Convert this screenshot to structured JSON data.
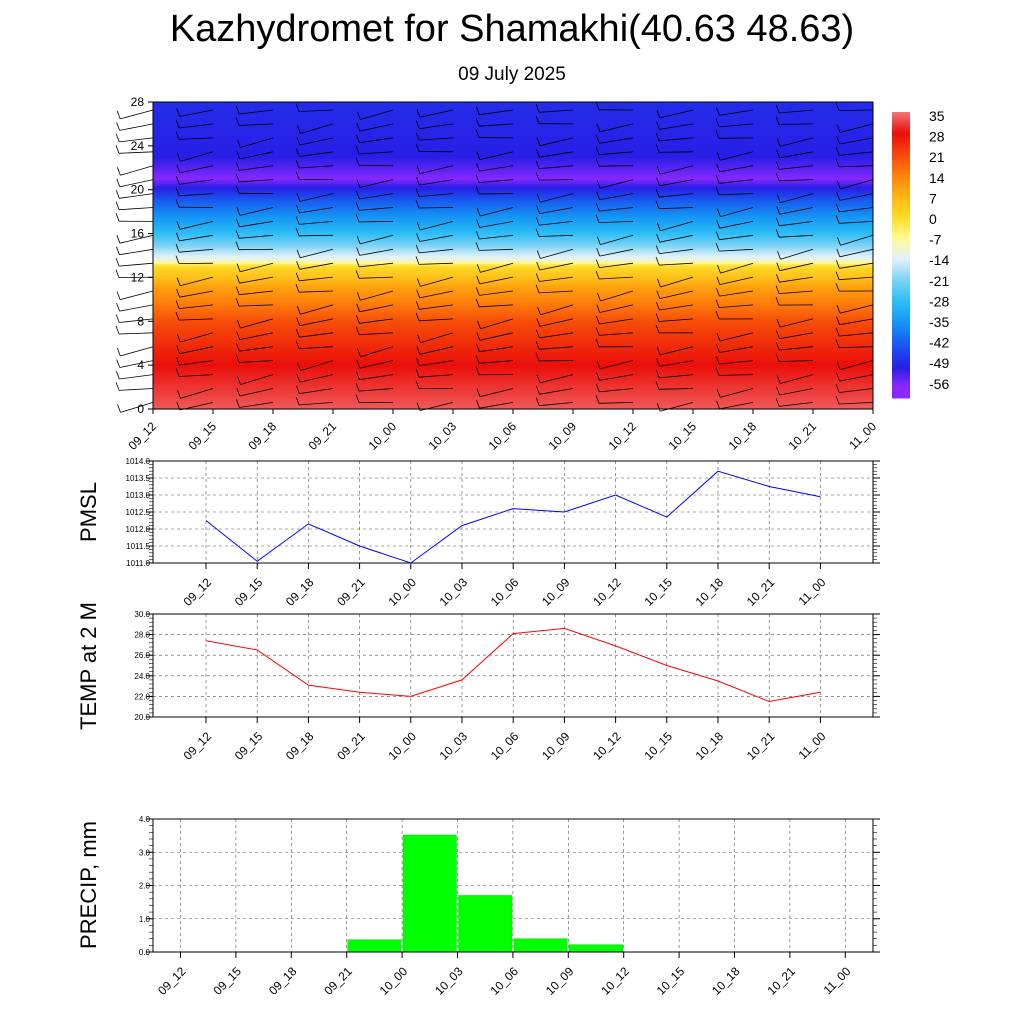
{
  "title": "Kazhydromet for Shamakhi(40.63 48.63)",
  "subtitle": "09 July 2025",
  "chart_data": [
    {
      "type": "heatmap",
      "x_categories": [
        "09_12",
        "09_15",
        "09_18",
        "09_21",
        "10_00",
        "10_03",
        "10_06",
        "10_09",
        "10_12",
        "10_15",
        "10_18",
        "10_21",
        "11_00"
      ],
      "y_ticks": [
        0,
        4,
        8,
        12,
        16,
        20,
        24,
        28
      ],
      "ylim": [
        0,
        28
      ],
      "colorbar_labels": [
        "35",
        "28",
        "21",
        "14",
        "7",
        "0",
        "-7",
        "-14",
        "-21",
        "-28",
        "-35",
        "-42",
        "-49",
        "-56"
      ],
      "colorbar_values": [
        35,
        28,
        21,
        14,
        7,
        0,
        -7,
        -14,
        -21,
        -28,
        -35,
        -42,
        -49,
        -56
      ],
      "profile": [
        {
          "h": 0,
          "t": 33
        },
        {
          "h": 4,
          "t": 28
        },
        {
          "h": 8,
          "t": 20
        },
        {
          "h": 11,
          "t": 10
        },
        {
          "h": 13,
          "t": 0
        },
        {
          "h": 13.6,
          "t": -12
        },
        {
          "h": 16,
          "t": -28
        },
        {
          "h": 19,
          "t": -42
        },
        {
          "h": 21,
          "t": -56
        },
        {
          "h": 23,
          "t": -50
        },
        {
          "h": 28,
          "t": -48
        }
      ],
      "wind_barbs": true
    },
    {
      "type": "line",
      "ylabel": "PMSL",
      "x": [
        "09_12",
        "09_15",
        "09_18",
        "09_21",
        "10_00",
        "10_03",
        "10_06",
        "10_09",
        "10_12",
        "10_15",
        "10_18",
        "10_21",
        "11_00"
      ],
      "values": [
        1012.25,
        1011.05,
        1012.15,
        1011.5,
        1011.0,
        1012.1,
        1012.6,
        1012.5,
        1013.0,
        1012.35,
        1013.7,
        1013.25,
        1012.95
      ],
      "ylim": [
        1011.0,
        1014.0
      ],
      "y_ticks": [
        "1011.0",
        "1011.5",
        "1012.0",
        "1012.5",
        "1013.0",
        "1013.5",
        "1014.0"
      ],
      "color": "#0000ff"
    },
    {
      "type": "line",
      "ylabel": "TEMP at 2 M",
      "x": [
        "09_12",
        "09_15",
        "09_18",
        "09_21",
        "10_00",
        "10_03",
        "10_06",
        "10_09",
        "10_12",
        "10_15",
        "10_18",
        "10_21",
        "11_00"
      ],
      "values": [
        27.4,
        26.5,
        23.1,
        22.4,
        22.0,
        23.6,
        28.1,
        28.6,
        26.9,
        25.0,
        23.5,
        21.5,
        22.4
      ],
      "ylim": [
        20.0,
        30.0
      ],
      "y_ticks": [
        "20.0",
        "22.0",
        "24.0",
        "26.0",
        "28.0",
        "30.0"
      ],
      "color": "#ff0000"
    },
    {
      "type": "bar",
      "ylabel": "PRECIP, mm",
      "categories": [
        "09_12",
        "09_15",
        "09_18",
        "09_21",
        "10_00",
        "10_03",
        "10_06",
        "10_09",
        "10_12",
        "10_15",
        "10_18",
        "10_21",
        "11_00"
      ],
      "values": [
        0,
        0,
        0,
        0,
        0.37,
        3.52,
        1.7,
        0.4,
        0.22,
        0,
        0,
        0,
        0
      ],
      "ylim": [
        0.0,
        4.0
      ],
      "y_ticks": [
        "0.0",
        "1.0",
        "2.0",
        "3.0",
        "4.0"
      ],
      "color": "#00ff00"
    }
  ]
}
